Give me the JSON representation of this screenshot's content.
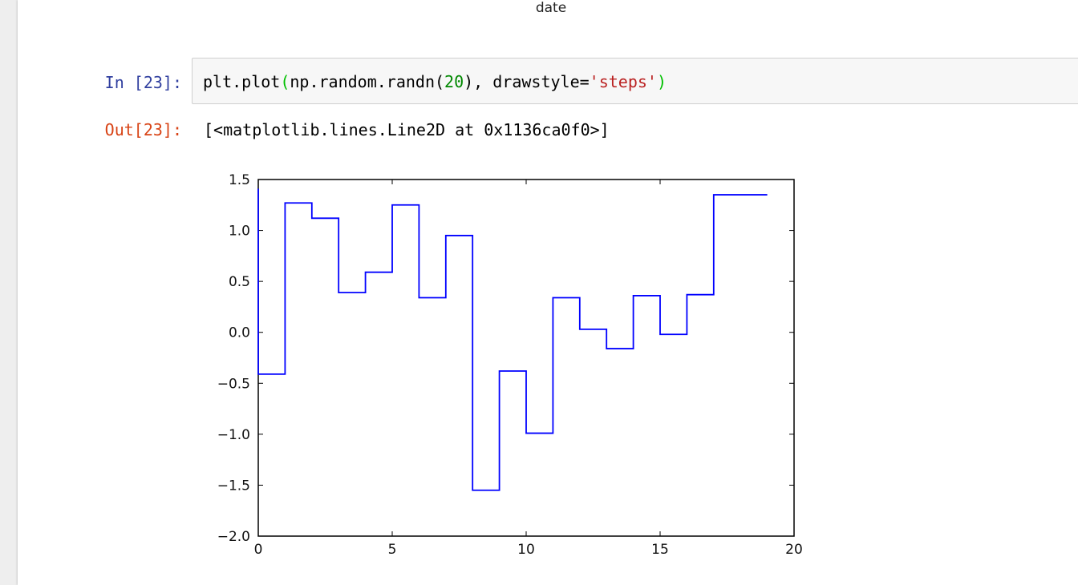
{
  "previous_output": {
    "xlabel": "date"
  },
  "cell": {
    "in_prompt": "In [23]:",
    "out_prompt": "Out[23]:",
    "code_tokens": {
      "t1": "plt.plot",
      "t2": "(",
      "t3": "np.random.randn(",
      "t4": "20",
      "t5": "), drawstyle=",
      "t6": "'steps'",
      "t7": ")"
    },
    "output_text": "[<matplotlib.lines.Line2D at 0x1136ca0f0>]"
  },
  "colors": {
    "line": "#0000ff",
    "in_prompt": "#303F9F",
    "out_prompt": "#D84315",
    "string": "#BA2121",
    "number": "#008800",
    "paren": "#00C000"
  },
  "chart_data": {
    "type": "line",
    "drawstyle": "steps",
    "title": "",
    "xlabel": "",
    "ylabel": "",
    "xlim": [
      0,
      20
    ],
    "ylim": [
      -2.0,
      1.5
    ],
    "xticks": [
      "0",
      "5",
      "10",
      "15",
      "20"
    ],
    "yticks": [
      "1.5",
      "1.0",
      "0.5",
      "0.0",
      "−0.5",
      "−1.0",
      "−1.5",
      "−2.0"
    ],
    "grid": false,
    "series": [
      {
        "x": [
          0,
          1,
          2,
          3,
          4,
          5,
          6,
          7,
          8,
          9,
          10,
          11,
          12,
          13,
          14,
          15,
          16,
          17,
          18,
          19
        ],
        "values": [
          1.41,
          -0.41,
          1.27,
          1.12,
          0.39,
          0.59,
          1.25,
          0.34,
          0.95,
          -1.55,
          -0.38,
          -0.99,
          0.34,
          0.03,
          -0.16,
          0.36,
          -0.02,
          0.37,
          1.35,
          1.35
        ]
      }
    ]
  }
}
